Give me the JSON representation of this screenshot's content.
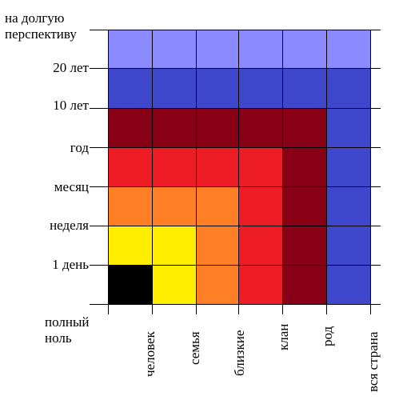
{
  "y_labels": [
    {
      "id": "horizon-long",
      "lines": [
        "на долгую",
        "перспективу"
      ]
    },
    {
      "id": "horizon-20y",
      "text": "20 лет"
    },
    {
      "id": "horizon-10y",
      "text": "10 лет"
    },
    {
      "id": "horizon-year",
      "text": "год"
    },
    {
      "id": "horizon-month",
      "text": "месяц"
    },
    {
      "id": "horizon-week",
      "text": "неделя"
    },
    {
      "id": "horizon-1day",
      "text": "1 день"
    }
  ],
  "origin_label": [
    "полный",
    "ноль"
  ],
  "x_labels": [
    "человек",
    "семья",
    "близкие",
    "клан",
    "род",
    "вся страна"
  ],
  "colors": {
    "black": "#000000",
    "yellow": "#ffee00",
    "orange": "#ff7f27",
    "red": "#ee1c24",
    "darkred": "#880015",
    "blue": "#3f48cc",
    "lightblue": "#8b8bff"
  },
  "cell_colors": [
    [
      "lightblue",
      "lightblue",
      "lightblue",
      "lightblue",
      "lightblue",
      "lightblue"
    ],
    [
      "blue",
      "blue",
      "blue",
      "blue",
      "blue",
      "blue"
    ],
    [
      "darkred",
      "darkred",
      "darkred",
      "darkred",
      "darkred",
      "blue"
    ],
    [
      "red",
      "red",
      "red",
      "red",
      "darkred",
      "blue"
    ],
    [
      "orange",
      "orange",
      "orange",
      "red",
      "darkred",
      "blue"
    ],
    [
      "yellow",
      "yellow",
      "orange",
      "red",
      "darkred",
      "blue"
    ],
    [
      "black",
      "yellow",
      "orange",
      "red",
      "darkred",
      "blue"
    ]
  ]
}
